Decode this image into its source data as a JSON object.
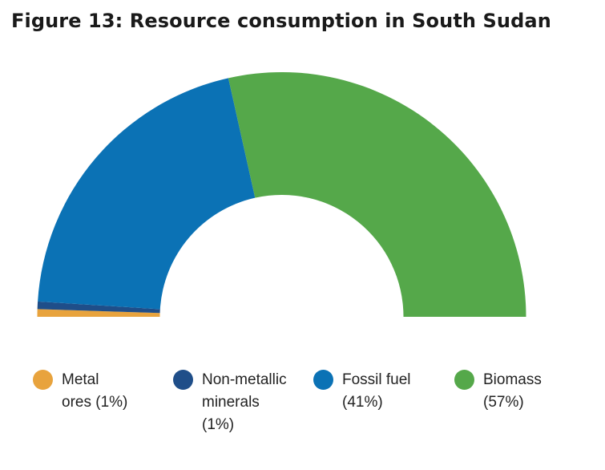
{
  "title": "Figure 13: Resource consumption in South Sudan",
  "chart_data": {
    "type": "pie",
    "variant": "semi-donut",
    "categories": [
      "Metal ores",
      "Non-metallic minerals",
      "Fossil fuel",
      "Biomass"
    ],
    "values": [
      1,
      1,
      41,
      57
    ],
    "unit": "%",
    "colors": [
      "#E8A33D",
      "#1F4E89",
      "#0B72B5",
      "#55A84A"
    ],
    "legend_position": "bottom",
    "legend": [
      {
        "lines": [
          "Metal",
          "ores (1%)"
        ]
      },
      {
        "lines": [
          "Non-metallic",
          "minerals",
          "(1%)"
        ]
      },
      {
        "lines": [
          "Fossil fuel",
          "(41%)"
        ]
      },
      {
        "lines": [
          "Biomass",
          "(57%)"
        ]
      }
    ]
  }
}
